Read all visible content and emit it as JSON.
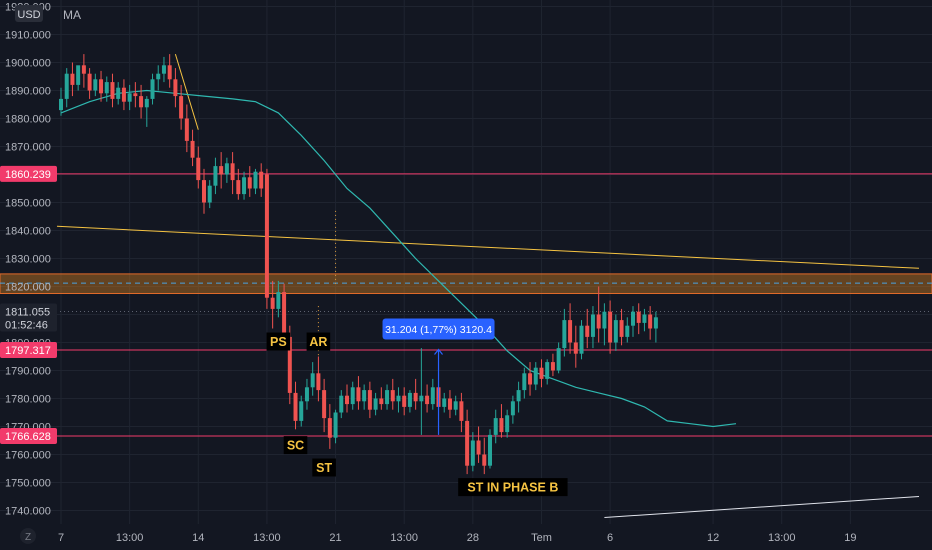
{
  "header": {
    "currency": "USD",
    "indicator": "MA"
  },
  "bottom_left_icon": "Z",
  "chart_data": {
    "type": "candlestick",
    "y_axis": {
      "ylim": [
        1735,
        1934
      ],
      "ticks": [
        1740,
        1750,
        1760,
        1770,
        1780,
        1790,
        1800,
        1810,
        1820,
        1830,
        1840,
        1850,
        1860,
        1870,
        1880,
        1890,
        1900,
        1910,
        1920
      ],
      "tick_labels": [
        "1740.000",
        "1750.000",
        "1760.000",
        "1770.000",
        "1780.000",
        "1790.000",
        "1800.000",
        "1810.000",
        "1820.000",
        "1830.000",
        "1840.000",
        "1850.000",
        "1860.000",
        "1870.000",
        "1880.000",
        "1890.000",
        "1900.000",
        "1910.000",
        "1920.000"
      ]
    },
    "x_axis": {
      "ticks": [
        {
          "label": "7",
          "bar": 0
        },
        {
          "label": "13:00",
          "bar": 12
        },
        {
          "label": "14",
          "bar": 24
        },
        {
          "label": "13:00",
          "bar": 36
        },
        {
          "label": "21",
          "bar": 48
        },
        {
          "label": "13:00",
          "bar": 60
        },
        {
          "label": "28",
          "bar": 72
        },
        {
          "label": "Tem",
          "bar": 84
        },
        {
          "label": "6",
          "bar": 96
        },
        {
          "label": "12",
          "bar": 114
        },
        {
          "label": "13:00",
          "bar": 126
        },
        {
          "label": "19",
          "bar": 138
        }
      ]
    },
    "colors": {
      "up": "#26a69a",
      "down": "#ef5350",
      "ma": "#2fb8b0",
      "trend": "#f5c342",
      "level": "#f23b6b",
      "zone": "#c77a22"
    },
    "candles": [
      {
        "o": 1883,
        "h": 1891,
        "c": 1887,
        "l": 1881
      },
      {
        "o": 1887,
        "h": 1898,
        "c": 1896,
        "l": 1884
      },
      {
        "o": 1896,
        "h": 1900,
        "c": 1892,
        "l": 1888
      },
      {
        "o": 1892,
        "h": 1898,
        "c": 1899,
        "l": 1890
      },
      {
        "o": 1899,
        "h": 1903,
        "c": 1896,
        "l": 1891
      },
      {
        "o": 1896,
        "h": 1898,
        "c": 1890,
        "l": 1887
      },
      {
        "o": 1890,
        "h": 1896,
        "c": 1894,
        "l": 1888
      },
      {
        "o": 1894,
        "h": 1897,
        "c": 1889,
        "l": 1886
      },
      {
        "o": 1889,
        "h": 1895,
        "c": 1893,
        "l": 1886
      },
      {
        "o": 1893,
        "h": 1896,
        "c": 1887,
        "l": 1884
      },
      {
        "o": 1887,
        "h": 1893,
        "c": 1891,
        "l": 1885
      },
      {
        "o": 1891,
        "h": 1894,
        "c": 1886,
        "l": 1883
      },
      {
        "o": 1886,
        "h": 1892,
        "c": 1889,
        "l": 1883
      },
      {
        "o": 1889,
        "h": 1893,
        "c": 1888,
        "l": 1884
      },
      {
        "o": 1888,
        "h": 1892,
        "c": 1884,
        "l": 1880
      },
      {
        "o": 1884,
        "h": 1888,
        "c": 1887,
        "l": 1877
      },
      {
        "o": 1887,
        "h": 1896,
        "c": 1894,
        "l": 1885
      },
      {
        "o": 1894,
        "h": 1899,
        "c": 1896,
        "l": 1890
      },
      {
        "o": 1896,
        "h": 1902,
        "c": 1899,
        "l": 1893
      },
      {
        "o": 1899,
        "h": 1903,
        "c": 1894,
        "l": 1891
      },
      {
        "o": 1894,
        "h": 1898,
        "c": 1888,
        "l": 1884
      },
      {
        "o": 1888,
        "h": 1892,
        "c": 1880,
        "l": 1876
      },
      {
        "o": 1880,
        "h": 1885,
        "c": 1872,
        "l": 1868
      },
      {
        "o": 1872,
        "h": 1876,
        "c": 1866,
        "l": 1863
      },
      {
        "o": 1866,
        "h": 1870,
        "c": 1858,
        "l": 1855
      },
      {
        "o": 1858,
        "h": 1862,
        "c": 1850,
        "l": 1846
      },
      {
        "o": 1850,
        "h": 1858,
        "c": 1856,
        "l": 1848
      },
      {
        "o": 1856,
        "h": 1866,
        "c": 1863,
        "l": 1853
      },
      {
        "o": 1863,
        "h": 1868,
        "c": 1860,
        "l": 1855
      },
      {
        "o": 1860,
        "h": 1866,
        "c": 1864,
        "l": 1857
      },
      {
        "o": 1864,
        "h": 1868,
        "c": 1858,
        "l": 1853
      },
      {
        "o": 1858,
        "h": 1862,
        "c": 1853,
        "l": 1851
      },
      {
        "o": 1853,
        "h": 1861,
        "c": 1859,
        "l": 1851
      },
      {
        "o": 1859,
        "h": 1863,
        "c": 1855,
        "l": 1852
      },
      {
        "o": 1855,
        "h": 1862,
        "c": 1861,
        "l": 1853
      },
      {
        "o": 1861,
        "h": 1864,
        "c": 1855,
        "l": 1852
      },
      {
        "o": 1860,
        "h": 1862,
        "c": 1816,
        "l": 1812
      },
      {
        "o": 1816,
        "h": 1822,
        "c": 1812,
        "l": 1805
      },
      {
        "o": 1812,
        "h": 1822,
        "c": 1818,
        "l": 1809
      },
      {
        "o": 1818,
        "h": 1821,
        "c": 1802,
        "l": 1798
      },
      {
        "o": 1802,
        "h": 1806,
        "c": 1782,
        "l": 1778
      },
      {
        "o": 1782,
        "h": 1786,
        "c": 1772,
        "l": 1769
      },
      {
        "o": 1772,
        "h": 1781,
        "c": 1779,
        "l": 1770
      },
      {
        "o": 1779,
        "h": 1787,
        "c": 1784,
        "l": 1776
      },
      {
        "o": 1784,
        "h": 1793,
        "c": 1789,
        "l": 1781
      },
      {
        "o": 1789,
        "h": 1795,
        "c": 1783,
        "l": 1779
      },
      {
        "o": 1783,
        "h": 1787,
        "c": 1773,
        "l": 1768
      },
      {
        "o": 1773,
        "h": 1778,
        "c": 1766,
        "l": 1762
      },
      {
        "o": 1766,
        "h": 1776,
        "c": 1775,
        "l": 1764
      },
      {
        "o": 1775,
        "h": 1783,
        "c": 1781,
        "l": 1773
      },
      {
        "o": 1781,
        "h": 1785,
        "c": 1778,
        "l": 1775
      },
      {
        "o": 1778,
        "h": 1786,
        "c": 1784,
        "l": 1776
      },
      {
        "o": 1784,
        "h": 1788,
        "c": 1779,
        "l": 1776
      },
      {
        "o": 1779,
        "h": 1785,
        "c": 1783,
        "l": 1776
      },
      {
        "o": 1783,
        "h": 1786,
        "c": 1776,
        "l": 1773
      },
      {
        "o": 1776,
        "h": 1782,
        "c": 1780,
        "l": 1774
      },
      {
        "o": 1780,
        "h": 1784,
        "c": 1778,
        "l": 1776
      },
      {
        "o": 1778,
        "h": 1785,
        "c": 1783,
        "l": 1776
      },
      {
        "o": 1783,
        "h": 1787,
        "c": 1779,
        "l": 1776
      },
      {
        "o": 1779,
        "h": 1784,
        "c": 1781,
        "l": 1775
      },
      {
        "o": 1781,
        "h": 1784,
        "c": 1777,
        "l": 1774
      },
      {
        "o": 1777,
        "h": 1783,
        "c": 1782,
        "l": 1775
      },
      {
        "o": 1782,
        "h": 1787,
        "c": 1779,
        "l": 1776
      },
      {
        "o": 1779,
        "h": 1798,
        "c": 1781,
        "l": 1767
      },
      {
        "o": 1781,
        "h": 1785,
        "c": 1778,
        "l": 1775
      },
      {
        "o": 1778,
        "h": 1787,
        "c": 1784,
        "l": 1776
      },
      {
        "o": 1784,
        "h": 1789,
        "c": 1777,
        "l": 1774
      },
      {
        "o": 1777,
        "h": 1782,
        "c": 1780,
        "l": 1775
      },
      {
        "o": 1780,
        "h": 1783,
        "c": 1776,
        "l": 1773
      },
      {
        "o": 1776,
        "h": 1781,
        "c": 1779,
        "l": 1774
      },
      {
        "o": 1779,
        "h": 1782,
        "c": 1772,
        "l": 1768
      },
      {
        "o": 1772,
        "h": 1776,
        "c": 1756,
        "l": 1753
      },
      {
        "o": 1756,
        "h": 1768,
        "c": 1765,
        "l": 1754
      },
      {
        "o": 1765,
        "h": 1770,
        "c": 1760,
        "l": 1757
      },
      {
        "o": 1760,
        "h": 1766,
        "c": 1756,
        "l": 1753
      },
      {
        "o": 1756,
        "h": 1769,
        "c": 1767,
        "l": 1755
      },
      {
        "o": 1767,
        "h": 1776,
        "c": 1773,
        "l": 1764
      },
      {
        "o": 1773,
        "h": 1778,
        "c": 1768,
        "l": 1766
      },
      {
        "o": 1768,
        "h": 1776,
        "c": 1774,
        "l": 1766
      },
      {
        "o": 1774,
        "h": 1781,
        "c": 1779,
        "l": 1771
      },
      {
        "o": 1779,
        "h": 1786,
        "c": 1783,
        "l": 1775
      },
      {
        "o": 1783,
        "h": 1791,
        "c": 1789,
        "l": 1780
      },
      {
        "o": 1789,
        "h": 1793,
        "c": 1785,
        "l": 1781
      },
      {
        "o": 1785,
        "h": 1793,
        "c": 1791,
        "l": 1783
      },
      {
        "o": 1791,
        "h": 1794,
        "c": 1787,
        "l": 1784
      },
      {
        "o": 1787,
        "h": 1794,
        "c": 1793,
        "l": 1785
      },
      {
        "o": 1793,
        "h": 1796,
        "c": 1790,
        "l": 1788
      },
      {
        "o": 1790,
        "h": 1800,
        "c": 1798,
        "l": 1789
      },
      {
        "o": 1798,
        "h": 1812,
        "c": 1808,
        "l": 1795
      },
      {
        "o": 1808,
        "h": 1814,
        "c": 1800,
        "l": 1796
      },
      {
        "o": 1800,
        "h": 1806,
        "c": 1796,
        "l": 1791
      },
      {
        "o": 1796,
        "h": 1808,
        "c": 1806,
        "l": 1794
      },
      {
        "o": 1806,
        "h": 1812,
        "c": 1802,
        "l": 1798
      },
      {
        "o": 1802,
        "h": 1813,
        "c": 1810,
        "l": 1798
      },
      {
        "o": 1810,
        "h": 1820,
        "c": 1805,
        "l": 1800
      },
      {
        "o": 1805,
        "h": 1814,
        "c": 1811,
        "l": 1799
      },
      {
        "o": 1811,
        "h": 1815,
        "c": 1800,
        "l": 1796
      },
      {
        "o": 1800,
        "h": 1810,
        "c": 1808,
        "l": 1797
      },
      {
        "o": 1808,
        "h": 1812,
        "c": 1802,
        "l": 1799
      },
      {
        "o": 1802,
        "h": 1809,
        "c": 1806,
        "l": 1800
      },
      {
        "o": 1806,
        "h": 1813,
        "c": 1811,
        "l": 1802
      },
      {
        "o": 1811,
        "h": 1814,
        "c": 1807,
        "l": 1803
      },
      {
        "o": 1807,
        "h": 1812,
        "c": 1810,
        "l": 1804
      },
      {
        "o": 1810,
        "h": 1813,
        "c": 1805,
        "l": 1801
      },
      {
        "o": 1805,
        "h": 1811,
        "c": 1809,
        "l": 1800
      }
    ],
    "moving_average": [
      [
        0,
        1882
      ],
      [
        5,
        1886
      ],
      [
        10,
        1889
      ],
      [
        15,
        1890
      ],
      [
        20,
        1889
      ],
      [
        25,
        1888
      ],
      [
        30,
        1887
      ],
      [
        34,
        1886
      ],
      [
        38,
        1882
      ],
      [
        42,
        1874
      ],
      [
        46,
        1865
      ],
      [
        50,
        1855
      ],
      [
        54,
        1848
      ],
      [
        58,
        1839
      ],
      [
        62,
        1830
      ],
      [
        66,
        1822
      ],
      [
        70,
        1814
      ],
      [
        74,
        1806
      ],
      [
        78,
        1797
      ],
      [
        82,
        1790
      ],
      [
        86,
        1787
      ],
      [
        90,
        1784
      ],
      [
        94,
        1782
      ],
      [
        98,
        1780
      ],
      [
        102,
        1777
      ],
      [
        106,
        1772
      ],
      [
        110,
        1771
      ],
      [
        114,
        1770
      ],
      [
        118,
        1771
      ]
    ],
    "horizontal_levels": [
      {
        "value": 1860.239,
        "label": "1860.239"
      },
      {
        "value": 1797.317,
        "label": "1797.317"
      },
      {
        "value": 1766.628,
        "label": "1766.628"
      }
    ],
    "current_price": {
      "value": 1811.055,
      "label": "1811.055",
      "countdown": "01:52:46"
    },
    "zone": {
      "top": 1824.5,
      "bottom": 1817.5,
      "mid": 1821.2
    },
    "trendline": {
      "points": [
        [
          0,
          1841.5
        ],
        [
          150,
          1826.5
        ]
      ]
    },
    "trendline_bottom": {
      "points": [
        [
          95,
          1737.5
        ],
        [
          150,
          1745.0
        ]
      ]
    },
    "trend_short": {
      "points": [
        [
          20,
          1903
        ],
        [
          24,
          1876
        ]
      ]
    },
    "measure": {
      "bar": 66,
      "from": 1767,
      "to": 1797.5,
      "label": "31.204 (1,77%) 3120.4"
    },
    "dotted_verticals": [
      {
        "bar": 48,
        "from": 1820,
        "to": 1847
      },
      {
        "bar": 45,
        "from": 1795,
        "to": 1813
      }
    ],
    "annotations": [
      {
        "text": "PS",
        "bar": 38,
        "value": 1800
      },
      {
        "text": "AR",
        "bar": 45,
        "value": 1800
      },
      {
        "text": "SC",
        "bar": 41,
        "value": 1763
      },
      {
        "text": "ST",
        "bar": 46,
        "value": 1755
      },
      {
        "text": "ST IN PHASE B",
        "bar": 79,
        "value": 1748
      }
    ]
  }
}
